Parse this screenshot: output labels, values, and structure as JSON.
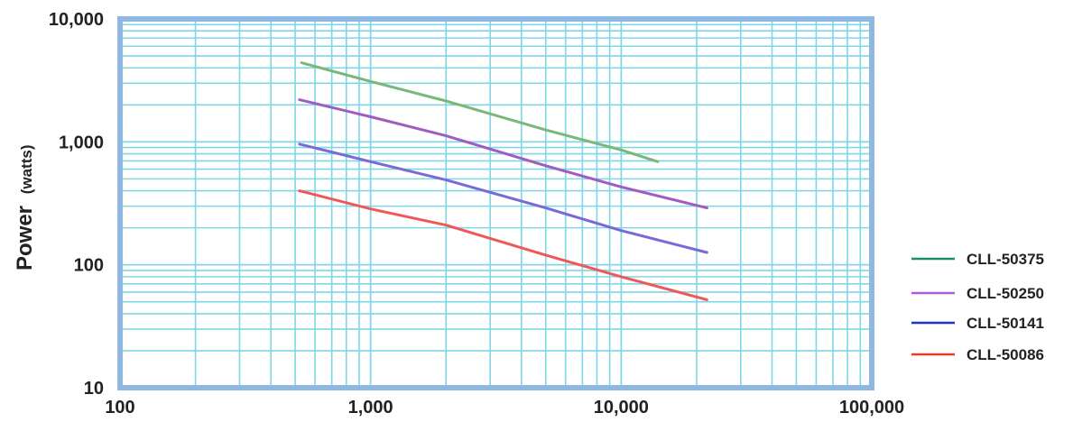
{
  "chart_data": {
    "type": "line",
    "title": "",
    "xlabel": "",
    "ylabel": "Power",
    "ylabel_unit": "(watts)",
    "x_scale": "log",
    "y_scale": "log",
    "xlim": [
      100,
      100000
    ],
    "ylim": [
      10,
      10000
    ],
    "x_ticks": [
      "100",
      "1,000",
      "10,000",
      "100,000"
    ],
    "y_ticks": [
      "10,000",
      "1,000",
      "100",
      "10"
    ],
    "grid": true,
    "legend_position": "right",
    "colors": {
      "grid": "#7fd6e6",
      "frame": "#8fb8e0",
      "legend": [
        "#1e8a6e",
        "#b05cd6",
        "#2233cc",
        "#f03a28"
      ],
      "lines": [
        "#7ab87a",
        "#a05cc0",
        "#7a6ad6",
        "#f05858"
      ]
    },
    "series": [
      {
        "name": "CLL-50375",
        "x": [
          530,
          1000,
          2000,
          5000,
          10000,
          14000
        ],
        "y": [
          4400,
          3100,
          2150,
          1250,
          860,
          690
        ]
      },
      {
        "name": "CLL-50250",
        "x": [
          520,
          1000,
          2000,
          5000,
          10000,
          22000
        ],
        "y": [
          2200,
          1600,
          1120,
          640,
          430,
          290
        ]
      },
      {
        "name": "CLL-50141",
        "x": [
          520,
          1000,
          2000,
          5000,
          10000,
          22000
        ],
        "y": [
          960,
          690,
          490,
          290,
          190,
          126
        ]
      },
      {
        "name": "CLL-50086",
        "x": [
          520,
          1000,
          2000,
          5000,
          10000,
          22000
        ],
        "y": [
          400,
          285,
          210,
          120,
          80,
          52
        ]
      }
    ]
  }
}
